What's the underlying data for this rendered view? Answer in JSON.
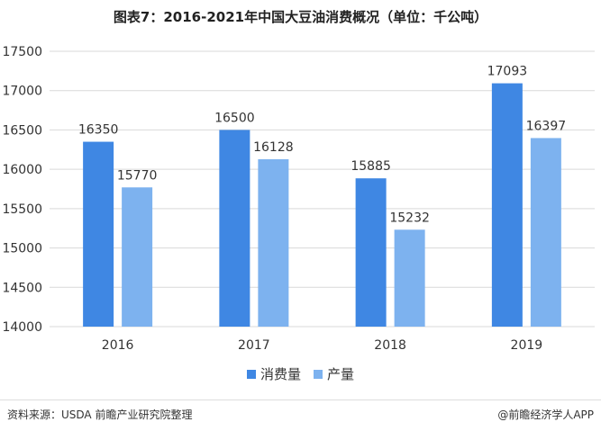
{
  "title": "图表7：2016-2021年中国大豆油消费概况（单位：千公吨）",
  "source": "资料来源：USDA 前瞻产业研究院整理",
  "credit": "@前瞻经济学人APP",
  "colors": {
    "series1": "#3f87e3",
    "series2": "#7db2ef",
    "grid": "#d9d9d9",
    "axis_text": "#333333"
  },
  "chart_data": {
    "type": "bar",
    "categories": [
      "2016",
      "2017",
      "2018",
      "2019"
    ],
    "series": [
      {
        "name": "消费量",
        "values": [
          16350,
          16500,
          15885,
          17093
        ]
      },
      {
        "name": "产量",
        "values": [
          15770,
          16128,
          15232,
          16397
        ]
      }
    ],
    "ylim": [
      14000,
      17500
    ],
    "yticks": [
      14000,
      14500,
      15000,
      15500,
      16000,
      16500,
      17000,
      17500
    ],
    "grid": true,
    "legend_position": "bottom"
  }
}
